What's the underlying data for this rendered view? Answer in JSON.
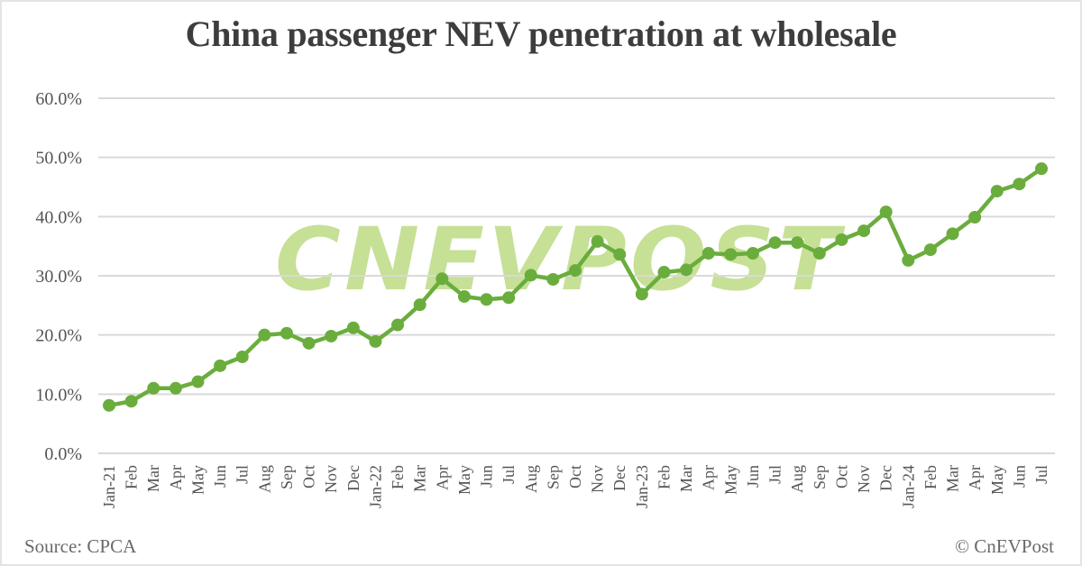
{
  "header": {
    "title": "China passenger NEV penetration at wholesale"
  },
  "footer": {
    "source": "Source: CPCA",
    "copyright": "© CnEVPost"
  },
  "watermark": {
    "text": "CNEVPOST",
    "color": "#c6e096"
  },
  "colors": {
    "line": "#6aad3d",
    "grid": "#d9d9d9",
    "text": "#555555"
  },
  "chart_data": {
    "type": "line",
    "title": "China passenger NEV penetration at wholesale",
    "xlabel": "",
    "ylabel": "",
    "ylim": [
      0,
      60
    ],
    "yticks": [
      "0.0%",
      "10.0%",
      "20.0%",
      "30.0%",
      "40.0%",
      "50.0%",
      "60.0%"
    ],
    "grid": true,
    "legend": "none",
    "categories": [
      "Jan-21",
      "Feb",
      "Mar",
      "Apr",
      "May",
      "Jun",
      "Jul",
      "Aug",
      "Sep",
      "Oct",
      "Nov",
      "Dec",
      "Jan-22",
      "Feb",
      "Mar",
      "Apr",
      "May",
      "Jun",
      "Jul",
      "Aug",
      "Sep",
      "Oct",
      "Nov",
      "Dec",
      "Jan-23",
      "Feb",
      "Mar",
      "Apr",
      "May",
      "Jun",
      "Jul",
      "Aug",
      "Sep",
      "Oct",
      "Nov",
      "Dec",
      "Jan-24",
      "Feb",
      "Mar",
      "Apr",
      "May",
      "Jun",
      "Jul"
    ],
    "series": [
      {
        "name": "NEV penetration",
        "values": [
          8.1,
          8.8,
          11.0,
          11.0,
          12.1,
          14.8,
          16.3,
          20.0,
          20.3,
          18.6,
          19.8,
          21.2,
          18.9,
          21.7,
          25.1,
          29.5,
          26.5,
          26.0,
          26.3,
          30.1,
          29.4,
          30.9,
          35.8,
          33.6,
          26.9,
          30.6,
          31.0,
          33.8,
          33.6,
          33.8,
          35.6,
          35.6,
          33.8,
          36.1,
          37.6,
          40.8,
          32.6,
          34.4,
          37.1,
          39.9,
          44.3,
          45.5,
          48.1
        ]
      }
    ],
    "source": "Source: CPCA",
    "annotation": "© CnEVPost"
  }
}
